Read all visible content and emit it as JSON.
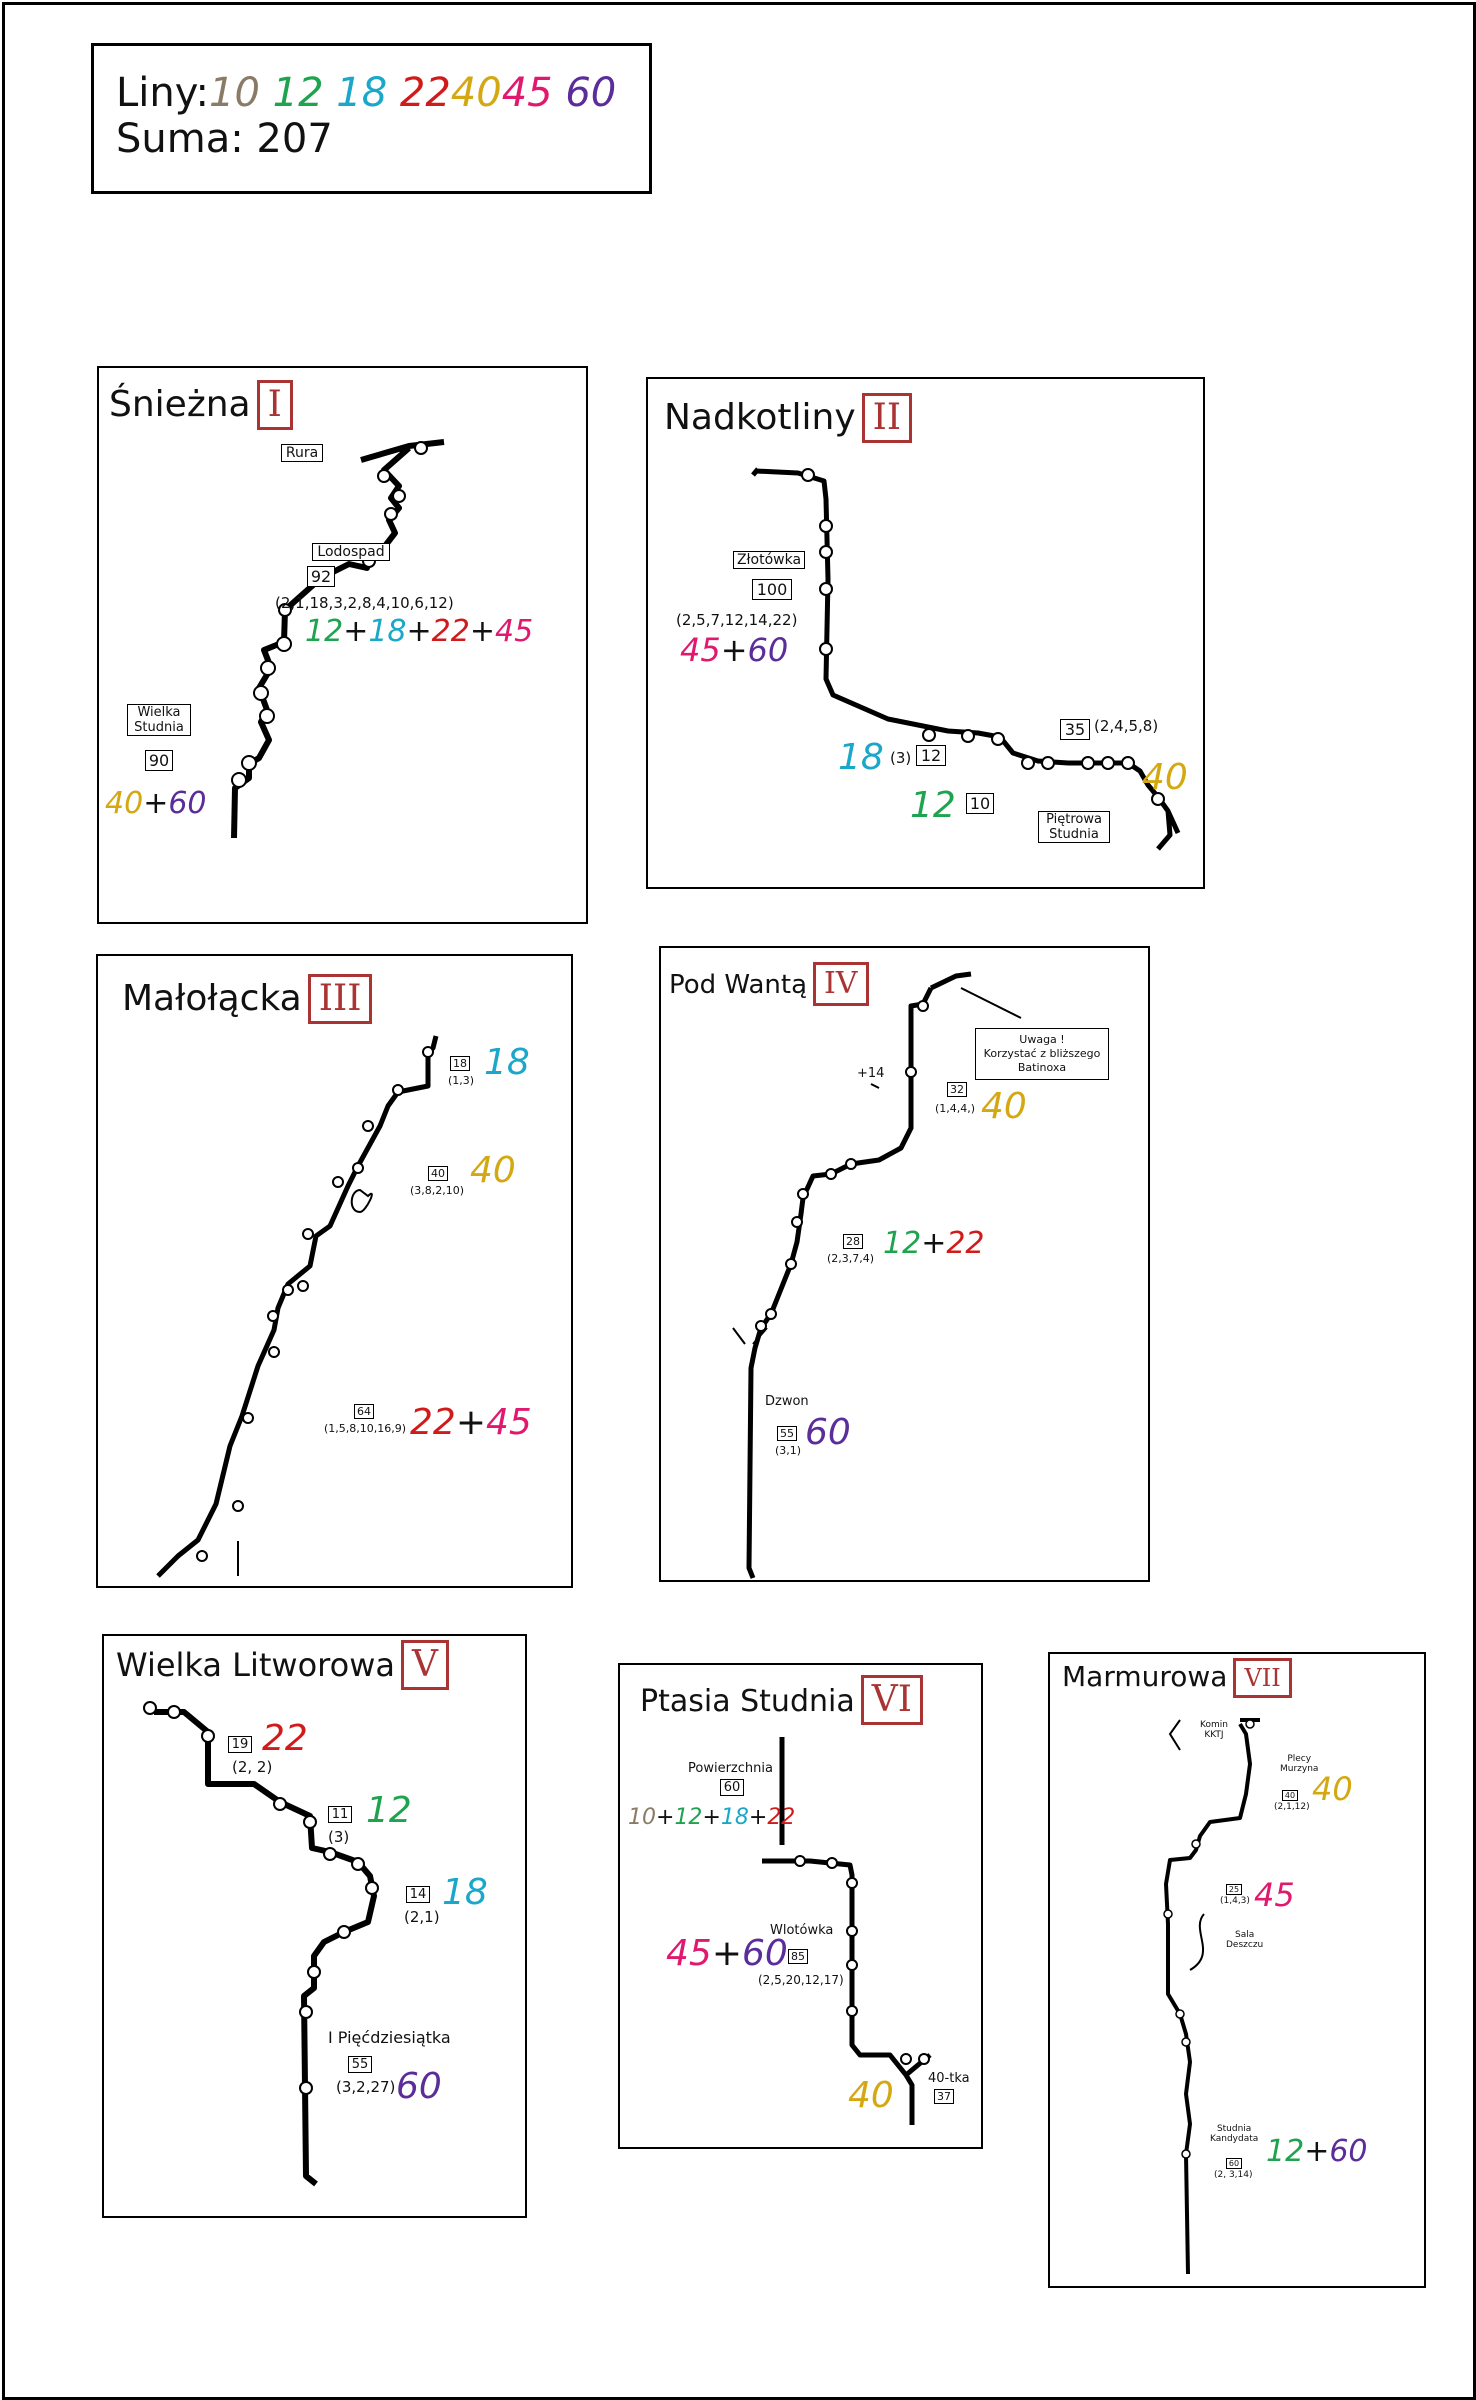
{
  "legend": {
    "label_lines": "Liny:",
    "label_sum": "Suma:",
    "sum": "207",
    "lengths": [
      "10",
      "12",
      "18",
      "22",
      "40",
      "45",
      "60"
    ]
  },
  "colors": {
    "10": "#8a7b66",
    "12": "#1ea34e",
    "18": "#1aa7c9",
    "22": "#d11a1a",
    "40": "#d4a812",
    "45": "#e0196f",
    "60": "#5b2d9a",
    "roman": "#aa3333"
  },
  "caves": [
    {
      "name": "Śnieżna",
      "roman": "I",
      "labels": [
        "Rura",
        "Lodospad",
        "Wielka",
        "Studnia"
      ],
      "boxes": [
        "92",
        "90"
      ],
      "seq": "(2,1,18,3,2,8,4,10,6,12)",
      "ropes_a": [
        "12",
        "18",
        "22",
        "45"
      ],
      "ropes_b": [
        "40",
        "60"
      ]
    },
    {
      "name": "Nadkotliny",
      "roman": "II",
      "labels": [
        "Złotówka",
        "Piętrowa",
        "Studnia"
      ],
      "boxes": [
        "100",
        "12",
        "10",
        "35"
      ],
      "seq": "(2,5,7,12,14,22)",
      "seq2": "(2,4,5,8)",
      "seq3": "(3)",
      "ropes_a": [
        "45",
        "60"
      ],
      "rope_b": "18",
      "rope_c": "12",
      "rope_d": "40"
    },
    {
      "name": "Małołącka",
      "roman": "III",
      "boxes": [
        "18",
        "40",
        "64"
      ],
      "seqs": [
        "(1,3)",
        "(3,8,2,10)",
        "(1,5,8,10,16,9)"
      ],
      "rope_a": "18",
      "rope_b": "40",
      "ropes_c": [
        "22",
        "45"
      ]
    },
    {
      "name": "Pod Wantą",
      "roman": "IV",
      "note": [
        "Uwaga !",
        "Korzystać z bliższego",
        "Batinoxa"
      ],
      "plus14": "+14",
      "label_dzwon": "Dzwon",
      "boxes": [
        "32",
        "28",
        "55"
      ],
      "seqs": [
        "(1,4,4,)",
        "(2,3,7,4)",
        "(3,1)"
      ],
      "rope_a": "40",
      "ropes_b": [
        "12",
        "22"
      ],
      "rope_c": "60"
    },
    {
      "name": "Wielka Litworowa",
      "roman": "V",
      "label": "I Pięćdziesiątka",
      "boxes": [
        "19",
        "11",
        "14",
        "55"
      ],
      "seqs": [
        "(2, 2)",
        "(3)",
        "(2,1)",
        "(3,2,27)"
      ],
      "ropes": [
        "22",
        "12",
        "18",
        "60"
      ]
    },
    {
      "name": "Ptasia Studnia",
      "roman": "VI",
      "labels": [
        "Powierzchnia",
        "Wlotówka",
        "40-tka"
      ],
      "boxes": [
        "60",
        "85",
        "37"
      ],
      "seq": "(2,5,20,12,17)",
      "ropes_a": [
        "10",
        "12",
        "18",
        "22"
      ],
      "ropes_b": [
        "45",
        "60"
      ],
      "rope_c": "40"
    },
    {
      "name": "Marmurowa",
      "roman": "VII",
      "labels": [
        "Komin",
        "KKTJ",
        "Plecy",
        "Murzyna",
        "Sala",
        "Deszczu",
        "Studnia",
        "Kandydata"
      ],
      "boxes": [
        "40",
        "25",
        "60"
      ],
      "seqs": [
        "(2,1,12)",
        "(1,4,3)",
        "(2, 3,14)"
      ],
      "rope_a": "40",
      "rope_b": "45",
      "ropes_c": [
        "12",
        "60"
      ]
    }
  ]
}
